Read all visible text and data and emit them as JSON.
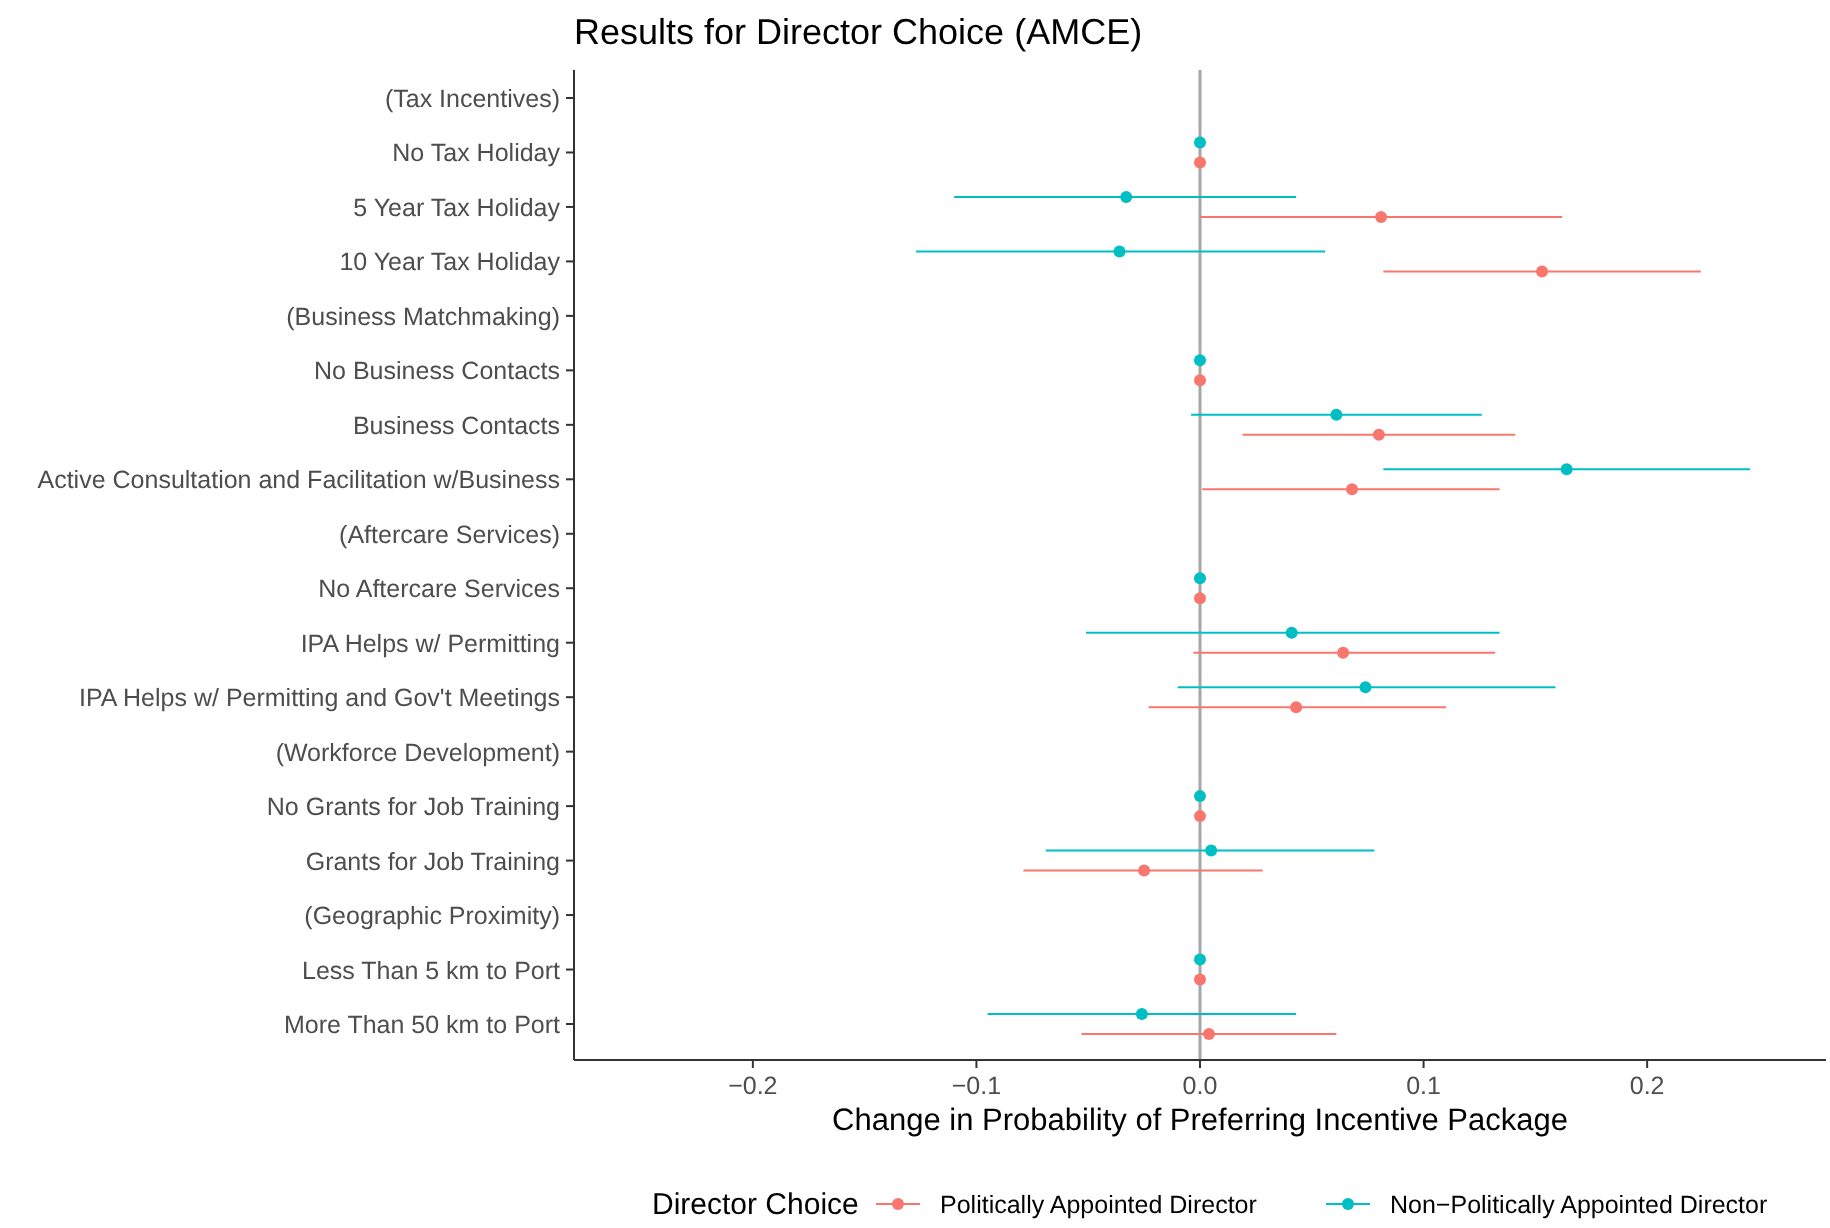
{
  "chart_data": {
    "type": "scatter",
    "orientation": "horizontal",
    "title": "Results for Director Choice (AMCE)",
    "xlabel": "Change in Probability of Preferring Incentive Package",
    "legend_title": "Director Choice",
    "legend": "bottom",
    "grid": false,
    "marker": "circle",
    "categories": [
      "(Tax Incentives)",
      "No Tax Holiday",
      "5 Year Tax Holiday",
      "10 Year Tax Holiday",
      "(Business Matchmaking)",
      "No Business Contacts",
      "Business Contacts",
      "Active Consultation and Facilitation w/Business",
      "(Aftercare Services)",
      "No Aftercare Services",
      "IPA Helps w/ Permitting",
      "IPA Helps w/ Permitting and Gov't Meetings",
      "(Workforce Development)",
      "No Grants for Job Training",
      "Grants for Job Training",
      "(Geographic Proximity)",
      "Less Than 5 km to Port",
      "More Than 50 km to Port"
    ],
    "xlim": [
      -0.28,
      0.28
    ],
    "xticks": [
      {
        "value": -0.2,
        "label": "−0.2"
      },
      {
        "value": -0.1,
        "label": "−0.1"
      },
      {
        "value": 0,
        "label": "0.0"
      },
      {
        "value": 0.1,
        "label": "0.1"
      },
      {
        "value": 0.2,
        "label": "0.2"
      }
    ],
    "ref_lines": [
      {
        "axis": "x",
        "value": 0,
        "label": null,
        "color": "#a6a6a6"
      }
    ],
    "series": [
      {
        "name": "Politically Appointed Director",
        "color": "#f8766d",
        "values": [
          null,
          0,
          0.081,
          0.153,
          null,
          0,
          0.08,
          0.068,
          null,
          0,
          0.064,
          0.043,
          null,
          0,
          -0.025,
          null,
          0,
          0.004
        ],
        "errors": [
          null,
          null,
          [
            0,
            0.162
          ],
          [
            0.082,
            0.224
          ],
          null,
          null,
          [
            0.019,
            0.141
          ],
          [
            0.001,
            0.134
          ],
          null,
          null,
          [
            -0.003,
            0.132
          ],
          [
            -0.023,
            0.11
          ],
          null,
          null,
          [
            -0.079,
            0.028
          ],
          null,
          null,
          [
            -0.053,
            0.061
          ]
        ]
      },
      {
        "name": "Non−Politically Appointed Director",
        "color": "#00bfc4",
        "values": [
          null,
          0,
          -0.033,
          -0.036,
          null,
          0,
          0.061,
          0.164,
          null,
          0,
          0.041,
          0.074,
          null,
          0,
          0.005,
          null,
          0,
          -0.026
        ],
        "errors": [
          null,
          null,
          [
            -0.11,
            0.043
          ],
          [
            -0.127,
            0.056
          ],
          null,
          null,
          [
            -0.004,
            0.126
          ],
          [
            0.082,
            0.246
          ],
          null,
          null,
          [
            -0.051,
            0.134
          ],
          [
            -0.01,
            0.159
          ],
          null,
          null,
          [
            -0.069,
            0.078
          ],
          null,
          null,
          [
            -0.095,
            0.043
          ]
        ]
      }
    ]
  }
}
